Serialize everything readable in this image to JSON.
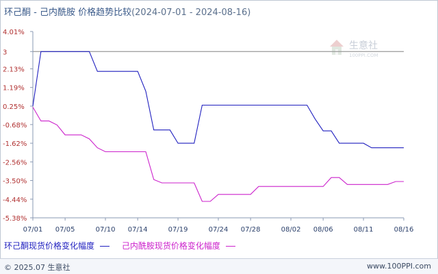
{
  "title": {
    "main": "环己酮 - 己内酰胺 价格趋势比较",
    "range": "(2024-07-01 - 2024-08-16)"
  },
  "watermark": {
    "brand": "生意社",
    "url": "100PPI.COM",
    "icon": "house-logo-icon"
  },
  "footer": {
    "copyright": "© 2025.07 生意社",
    "site": "www.100PPI.com"
  },
  "colors": {
    "series1": "#1f1fbf",
    "series2": "#cc22cc",
    "axis": "#8a99b3",
    "tick_text": "#b03030",
    "date_text": "#2a3f6a",
    "grid": "#e6e9ef"
  },
  "chart_data": {
    "type": "line",
    "title": "环己酮 - 己内酰胺 价格趋势比较",
    "ylabel_unit": "%",
    "y_ticks": [
      "4.01%",
      "3",
      "2.13%",
      "1.19%",
      "0.25%",
      "-0.68%",
      "-1.62%",
      "-2.56%",
      "-3.50%",
      "-4.44%",
      "-5.38%"
    ],
    "y_tick_values": [
      4.01,
      3.0,
      2.13,
      1.19,
      0.25,
      -0.68,
      -1.62,
      -2.56,
      -3.5,
      -4.44,
      -5.38
    ],
    "ylim": [
      -5.38,
      4.01
    ],
    "reference_line": 3.0,
    "x_ticks": [
      "07/01",
      "07/05",
      "07/10",
      "07/14",
      "07/19",
      "07/24",
      "07/28",
      "08/02",
      "08/06",
      "08/11",
      "08/16"
    ],
    "x_tick_days": [
      0,
      4,
      9,
      13,
      18,
      23,
      27,
      32,
      36,
      41,
      46
    ],
    "series": [
      {
        "name": "环己酮现货价格变化幅度",
        "color": "#1f1fbf",
        "points": [
          [
            0,
            0.25
          ],
          [
            1,
            3.0
          ],
          [
            2,
            3.0
          ],
          [
            3,
            3.0
          ],
          [
            4,
            3.0
          ],
          [
            5,
            3.0
          ],
          [
            6,
            3.0
          ],
          [
            7,
            3.0
          ],
          [
            8,
            2.0
          ],
          [
            9,
            2.0
          ],
          [
            10,
            2.0
          ],
          [
            11,
            2.0
          ],
          [
            12,
            2.0
          ],
          [
            13,
            2.0
          ],
          [
            14,
            1.0
          ],
          [
            15,
            -0.95
          ],
          [
            16,
            -0.95
          ],
          [
            17,
            -0.95
          ],
          [
            18,
            -1.62
          ],
          [
            19,
            -1.62
          ],
          [
            20,
            -1.62
          ],
          [
            21,
            0.3
          ],
          [
            22,
            0.3
          ],
          [
            23,
            0.3
          ],
          [
            24,
            0.3
          ],
          [
            25,
            0.3
          ],
          [
            26,
            0.3
          ],
          [
            27,
            0.3
          ],
          [
            28,
            0.3
          ],
          [
            29,
            0.3
          ],
          [
            30,
            0.3
          ],
          [
            31,
            0.3
          ],
          [
            32,
            0.3
          ],
          [
            33,
            0.3
          ],
          [
            34,
            0.3
          ],
          [
            35,
            -0.4
          ],
          [
            36,
            -1.0
          ],
          [
            37,
            -1.0
          ],
          [
            38,
            -1.62
          ],
          [
            39,
            -1.62
          ],
          [
            40,
            -1.62
          ],
          [
            41,
            -1.62
          ],
          [
            42,
            -1.85
          ],
          [
            43,
            -1.85
          ],
          [
            44,
            -1.85
          ],
          [
            45,
            -1.85
          ],
          [
            46,
            -1.85
          ]
        ]
      },
      {
        "name": "己内酰胺现货价格变化幅度",
        "color": "#cc22cc",
        "points": [
          [
            0,
            0.2
          ],
          [
            1,
            -0.5
          ],
          [
            2,
            -0.5
          ],
          [
            3,
            -0.7
          ],
          [
            4,
            -1.2
          ],
          [
            5,
            -1.2
          ],
          [
            6,
            -1.2
          ],
          [
            7,
            -1.4
          ],
          [
            8,
            -1.85
          ],
          [
            9,
            -2.05
          ],
          [
            10,
            -2.05
          ],
          [
            11,
            -2.05
          ],
          [
            12,
            -2.05
          ],
          [
            13,
            -2.05
          ],
          [
            14,
            -2.05
          ],
          [
            15,
            -3.45
          ],
          [
            16,
            -3.62
          ],
          [
            17,
            -3.62
          ],
          [
            18,
            -3.62
          ],
          [
            19,
            -3.62
          ],
          [
            20,
            -3.62
          ],
          [
            21,
            -4.55
          ],
          [
            22,
            -4.55
          ],
          [
            23,
            -4.2
          ],
          [
            24,
            -4.2
          ],
          [
            25,
            -4.2
          ],
          [
            26,
            -4.2
          ],
          [
            27,
            -4.2
          ],
          [
            28,
            -3.8
          ],
          [
            29,
            -3.8
          ],
          [
            30,
            -3.8
          ],
          [
            31,
            -3.8
          ],
          [
            32,
            -3.8
          ],
          [
            33,
            -3.8
          ],
          [
            34,
            -3.8
          ],
          [
            35,
            -3.8
          ],
          [
            36,
            -3.8
          ],
          [
            37,
            -3.35
          ],
          [
            38,
            -3.35
          ],
          [
            39,
            -3.7
          ],
          [
            40,
            -3.7
          ],
          [
            41,
            -3.7
          ],
          [
            42,
            -3.7
          ],
          [
            43,
            -3.7
          ],
          [
            44,
            -3.7
          ],
          [
            45,
            -3.55
          ],
          [
            46,
            -3.55
          ]
        ]
      }
    ]
  }
}
